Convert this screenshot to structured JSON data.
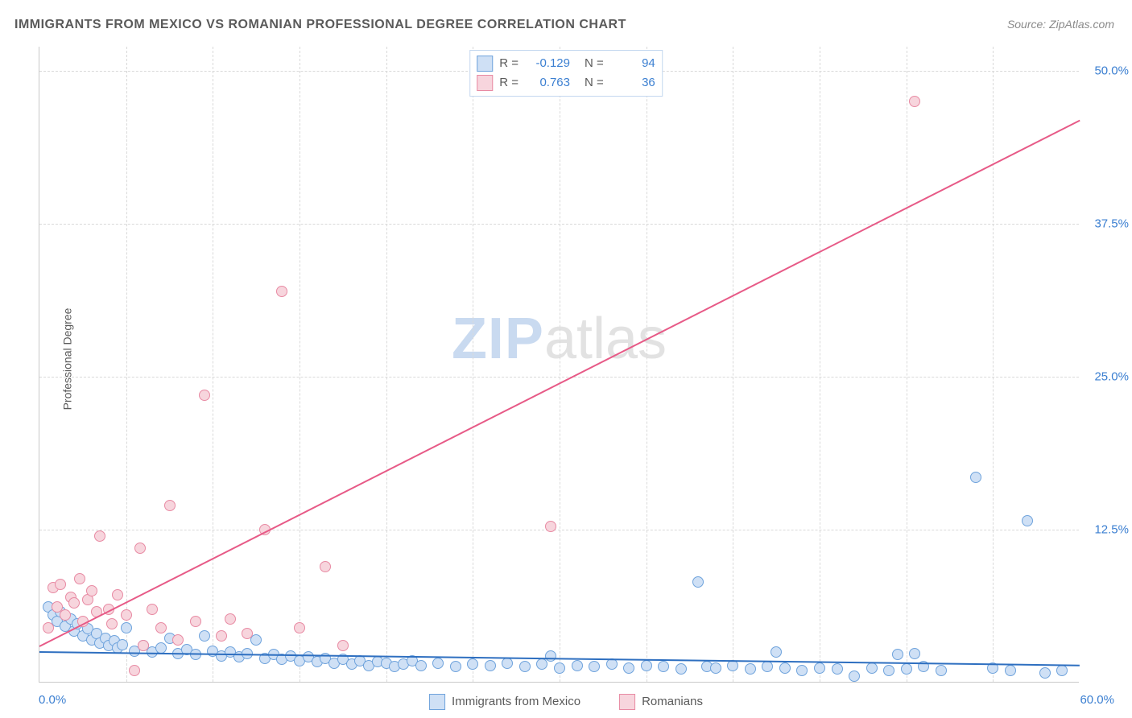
{
  "title": "IMMIGRANTS FROM MEXICO VS ROMANIAN PROFESSIONAL DEGREE CORRELATION CHART",
  "source": "Source: ZipAtlas.com",
  "ylabel": "Professional Degree",
  "watermark": {
    "part1": "ZIP",
    "part2": "atlas"
  },
  "chart": {
    "type": "scatter",
    "background_color": "#ffffff",
    "grid_color": "#d9d9d9",
    "axis_color": "#c9c9c9",
    "tick_color": "#3b7fd1",
    "tick_fontsize": 15,
    "label_fontsize": 14,
    "title_fontsize": 16,
    "marker_radius": 7,
    "marker_border_width": 1,
    "xlim": [
      0,
      60
    ],
    "ylim": [
      0,
      52
    ],
    "x_tick_step": 5,
    "x_tick_labels": {
      "min": "0.0%",
      "max": "60.0%"
    },
    "y_ticks": [
      {
        "v": 12.5,
        "label": "12.5%"
      },
      {
        "v": 25.0,
        "label": "25.0%"
      },
      {
        "v": 37.5,
        "label": "37.5%"
      },
      {
        "v": 50.0,
        "label": "50.0%"
      }
    ],
    "series": [
      {
        "name": "Immigrants from Mexico",
        "fill": "#cfe0f5",
        "stroke": "#6fa3dc",
        "trend_color": "#2e6fc0",
        "trend_width": 2,
        "r": -0.129,
        "n": 94,
        "trend": {
          "x1": 0,
          "y1": 2.6,
          "x2": 60,
          "y2": 1.5
        },
        "points": [
          [
            0.5,
            6.2
          ],
          [
            0.8,
            5.5
          ],
          [
            1.0,
            5.0
          ],
          [
            1.2,
            5.8
          ],
          [
            1.5,
            4.6
          ],
          [
            1.8,
            5.2
          ],
          [
            2.0,
            4.2
          ],
          [
            2.2,
            4.8
          ],
          [
            2.5,
            3.8
          ],
          [
            2.8,
            4.4
          ],
          [
            3.0,
            3.5
          ],
          [
            3.3,
            4.0
          ],
          [
            3.5,
            3.2
          ],
          [
            3.8,
            3.6
          ],
          [
            4.0,
            3.0
          ],
          [
            4.3,
            3.4
          ],
          [
            4.5,
            2.8
          ],
          [
            4.8,
            3.1
          ],
          [
            5.0,
            4.5
          ],
          [
            5.5,
            2.6
          ],
          [
            6.0,
            3.0
          ],
          [
            6.5,
            2.5
          ],
          [
            7.0,
            2.8
          ],
          [
            7.5,
            3.6
          ],
          [
            8.0,
            2.4
          ],
          [
            8.5,
            2.7
          ],
          [
            9.0,
            2.3
          ],
          [
            9.5,
            3.8
          ],
          [
            10.0,
            2.6
          ],
          [
            10.5,
            2.2
          ],
          [
            11.0,
            2.5
          ],
          [
            11.5,
            2.1
          ],
          [
            12.0,
            2.4
          ],
          [
            12.5,
            3.5
          ],
          [
            13.0,
            2.0
          ],
          [
            13.5,
            2.3
          ],
          [
            14.0,
            1.9
          ],
          [
            14.5,
            2.2
          ],
          [
            15.0,
            1.8
          ],
          [
            15.5,
            2.1
          ],
          [
            16.0,
            1.7
          ],
          [
            16.5,
            2.0
          ],
          [
            17.0,
            1.6
          ],
          [
            17.5,
            1.9
          ],
          [
            18.0,
            1.5
          ],
          [
            18.5,
            1.8
          ],
          [
            19.0,
            1.4
          ],
          [
            19.5,
            1.7
          ],
          [
            20.0,
            1.6
          ],
          [
            20.5,
            1.3
          ],
          [
            21.0,
            1.5
          ],
          [
            21.5,
            1.8
          ],
          [
            22.0,
            1.4
          ],
          [
            23.0,
            1.6
          ],
          [
            24.0,
            1.3
          ],
          [
            25.0,
            1.5
          ],
          [
            26.0,
            1.4
          ],
          [
            27.0,
            1.6
          ],
          [
            28.0,
            1.3
          ],
          [
            29.0,
            1.5
          ],
          [
            29.5,
            2.2
          ],
          [
            30.0,
            1.2
          ],
          [
            31.0,
            1.4
          ],
          [
            32.0,
            1.3
          ],
          [
            33.0,
            1.5
          ],
          [
            34.0,
            1.2
          ],
          [
            35.0,
            1.4
          ],
          [
            36.0,
            1.3
          ],
          [
            37.0,
            1.1
          ],
          [
            38.0,
            8.2
          ],
          [
            38.5,
            1.3
          ],
          [
            39.0,
            1.2
          ],
          [
            40.0,
            1.4
          ],
          [
            41.0,
            1.1
          ],
          [
            42.0,
            1.3
          ],
          [
            42.5,
            2.5
          ],
          [
            43.0,
            1.2
          ],
          [
            44.0,
            1.0
          ],
          [
            45.0,
            1.2
          ],
          [
            46.0,
            1.1
          ],
          [
            47.0,
            0.5
          ],
          [
            48.0,
            1.2
          ],
          [
            49.0,
            1.0
          ],
          [
            49.5,
            2.3
          ],
          [
            50.0,
            1.1
          ],
          [
            50.5,
            2.4
          ],
          [
            51.0,
            1.3
          ],
          [
            52.0,
            1.0
          ],
          [
            54.0,
            16.8
          ],
          [
            55.0,
            1.2
          ],
          [
            56.0,
            1.0
          ],
          [
            57.0,
            13.2
          ],
          [
            58.0,
            0.8
          ],
          [
            59.0,
            1.0
          ]
        ]
      },
      {
        "name": "Romanians",
        "fill": "#f7d5dd",
        "stroke": "#e88aa3",
        "trend_color": "#e75a87",
        "trend_width": 2,
        "r": 0.763,
        "n": 36,
        "trend": {
          "x1": 0,
          "y1": 3.0,
          "x2": 60,
          "y2": 46.0
        },
        "points": [
          [
            0.5,
            4.5
          ],
          [
            0.8,
            7.8
          ],
          [
            1.0,
            6.2
          ],
          [
            1.2,
            8.0
          ],
          [
            1.5,
            5.5
          ],
          [
            1.8,
            7.0
          ],
          [
            2.0,
            6.5
          ],
          [
            2.3,
            8.5
          ],
          [
            2.5,
            5.0
          ],
          [
            2.8,
            6.8
          ],
          [
            3.0,
            7.5
          ],
          [
            3.3,
            5.8
          ],
          [
            3.5,
            12.0
          ],
          [
            4.0,
            6.0
          ],
          [
            4.2,
            4.8
          ],
          [
            4.5,
            7.2
          ],
          [
            5.0,
            5.5
          ],
          [
            5.5,
            1.0
          ],
          [
            5.8,
            11.0
          ],
          [
            6.5,
            6.0
          ],
          [
            7.0,
            4.5
          ],
          [
            7.5,
            14.5
          ],
          [
            8.0,
            3.5
          ],
          [
            9.0,
            5.0
          ],
          [
            9.5,
            23.5
          ],
          [
            10.5,
            3.8
          ],
          [
            11.0,
            5.2
          ],
          [
            12.0,
            4.0
          ],
          [
            13.0,
            12.5
          ],
          [
            14.0,
            32.0
          ],
          [
            15.0,
            4.5
          ],
          [
            16.5,
            9.5
          ],
          [
            17.5,
            3.0
          ],
          [
            29.5,
            12.8
          ],
          [
            50.5,
            47.5
          ],
          [
            6.0,
            3.0
          ]
        ]
      }
    ]
  },
  "legend_top": {
    "border_color": "#c3d7ef",
    "rows": [
      {
        "swatch_fill": "#cfe0f5",
        "swatch_stroke": "#6fa3dc",
        "r_label": "R =",
        "r_value": "-0.129",
        "n_label": "N =",
        "n_value": "94"
      },
      {
        "swatch_fill": "#f7d5dd",
        "swatch_stroke": "#e88aa3",
        "r_label": "R =",
        "r_value": "0.763",
        "n_label": "N =",
        "n_value": "36"
      }
    ]
  },
  "legend_bottom": {
    "items": [
      {
        "swatch_fill": "#cfe0f5",
        "swatch_stroke": "#6fa3dc",
        "label": "Immigrants from Mexico"
      },
      {
        "swatch_fill": "#f7d5dd",
        "swatch_stroke": "#e88aa3",
        "label": "Romanians"
      }
    ]
  }
}
